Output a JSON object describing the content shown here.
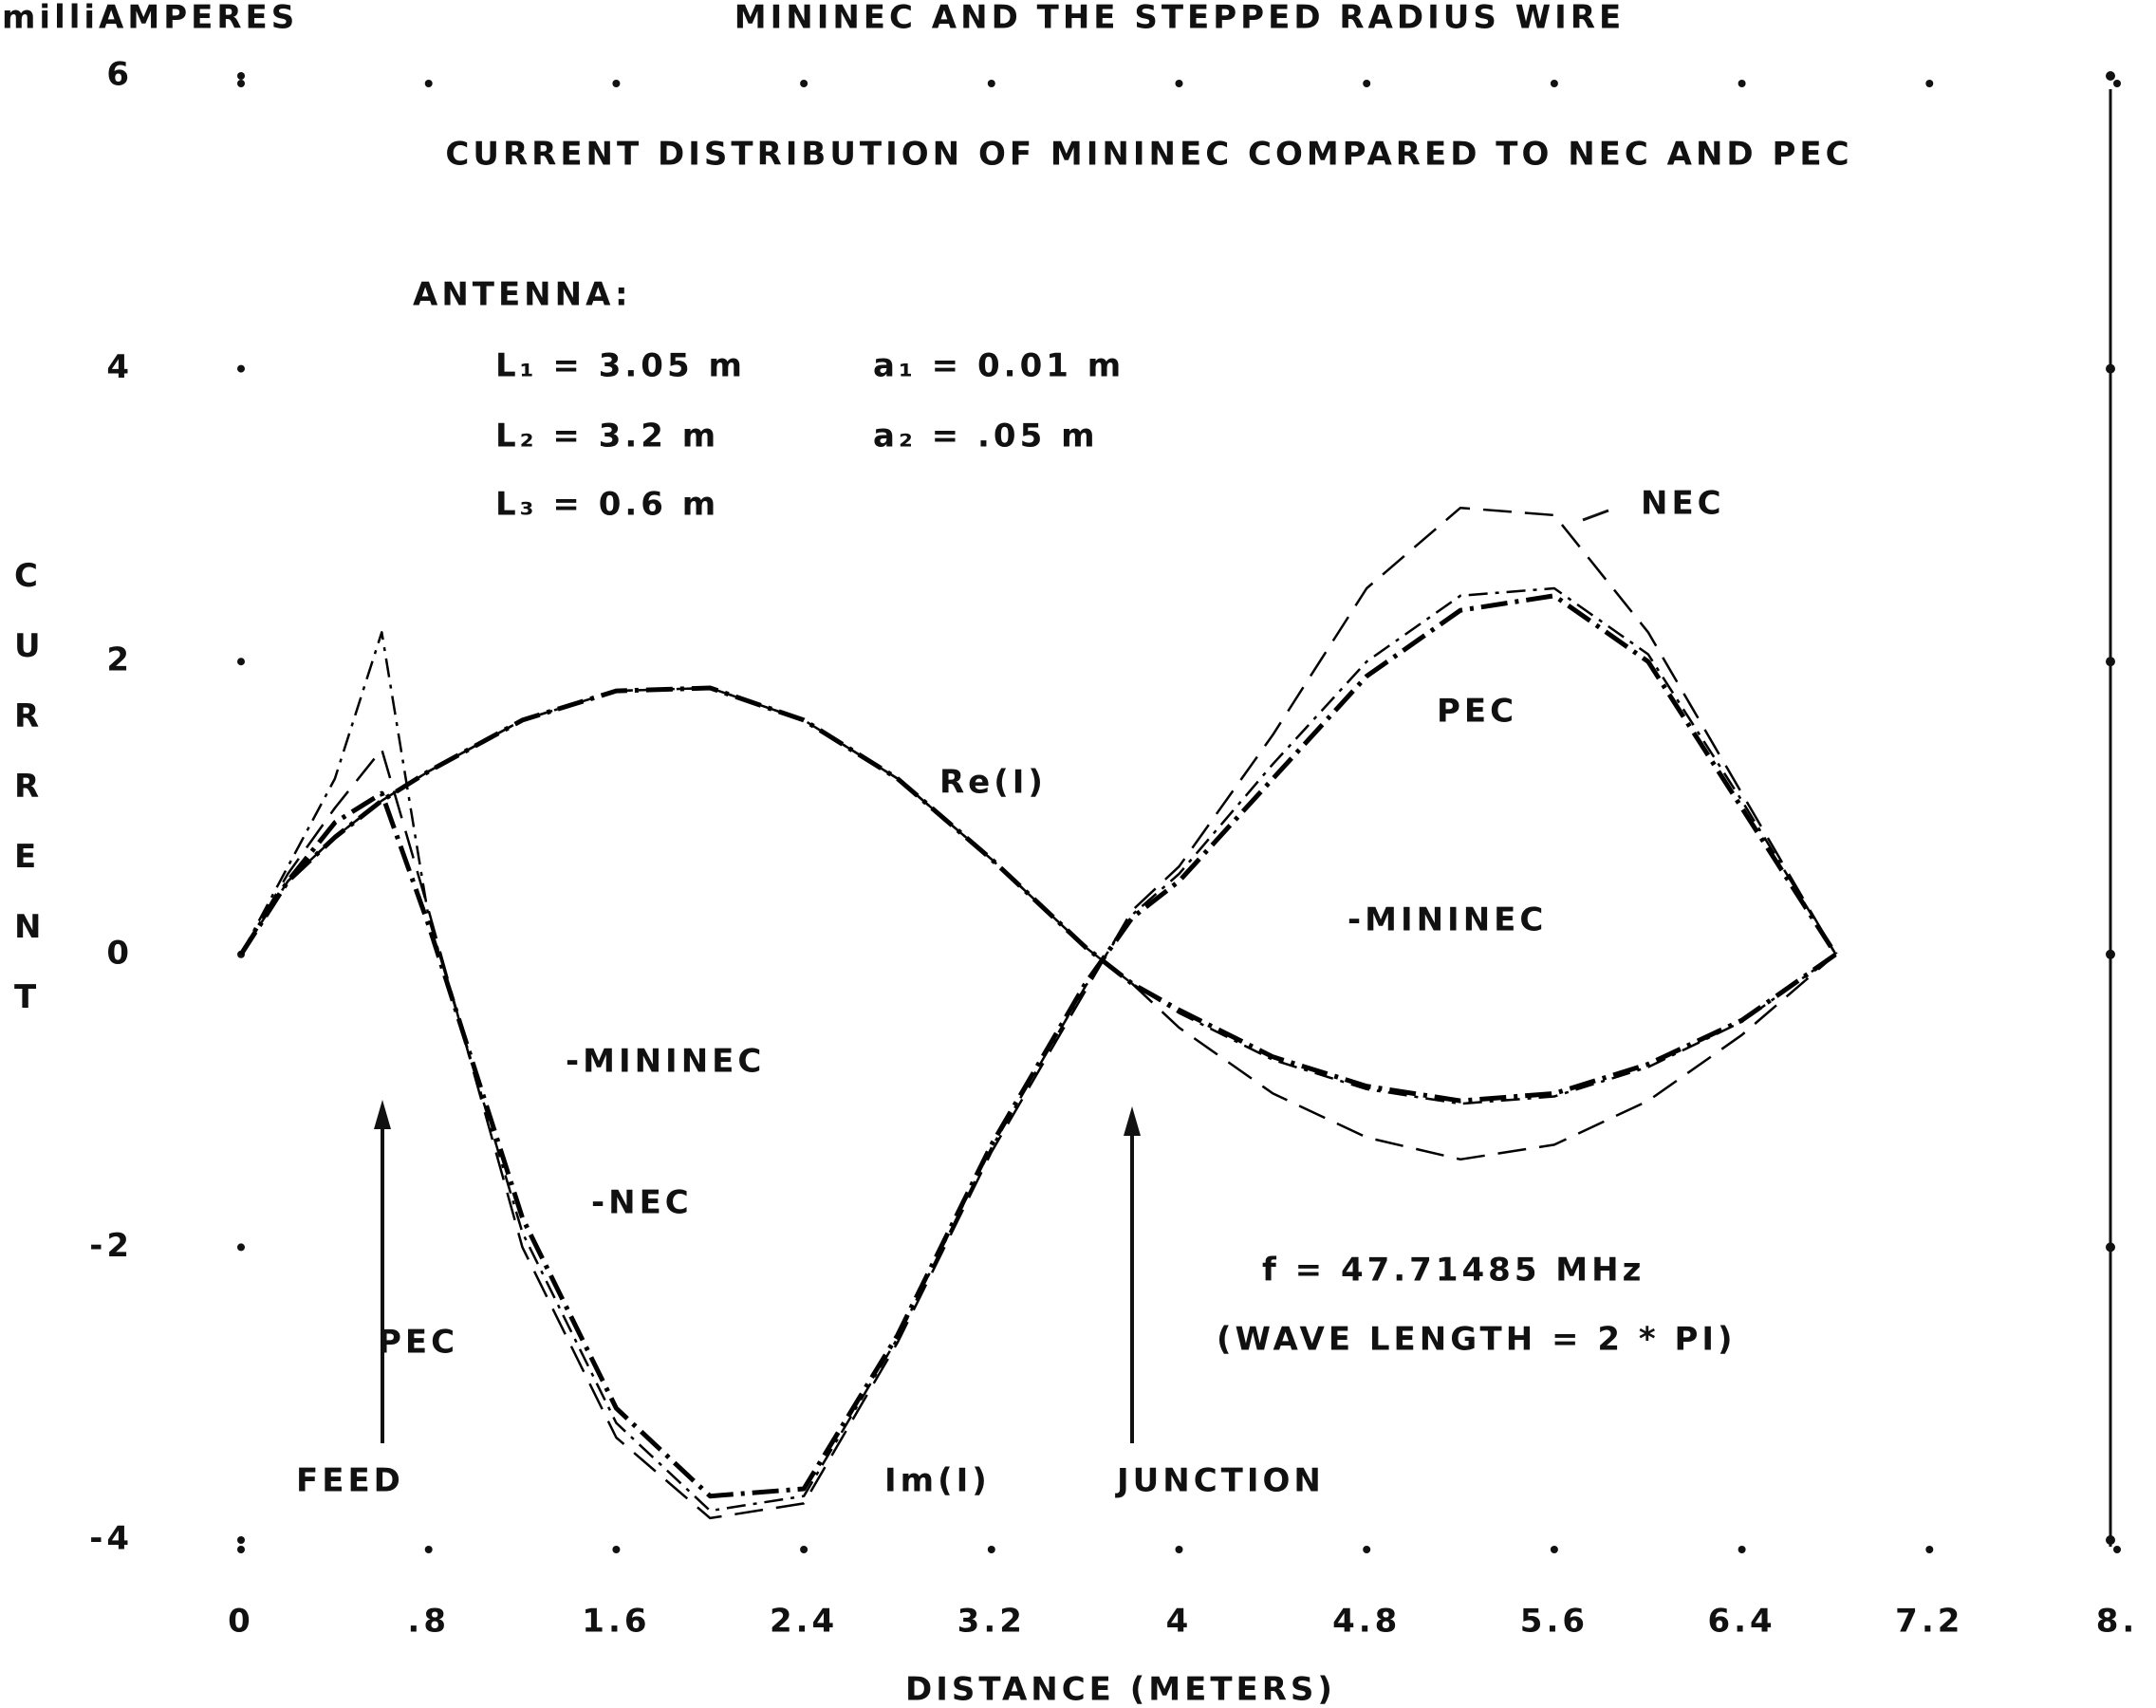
{
  "chart_data": {
    "type": "line",
    "title": "MININEC AND THE STEPPED RADIUS WIRE",
    "subtitle": "CURRENT DISTRIBUTION OF MININEC COMPARED TO NEC AND PEC",
    "y_unit_label": "milliAMPERES",
    "y_label": "CURRENT",
    "x_label": "DISTANCE (METERS)",
    "xlim": [
      0,
      8
    ],
    "ylim": [
      -4,
      6
    ],
    "xticks": [
      0,
      {
        "value": 0.8,
        "label": ".8"
      },
      1.6,
      2.4,
      3.2,
      4,
      4.8,
      5.6,
      6.4,
      7.2,
      {
        "value": 8,
        "label": "8."
      }
    ],
    "yticks": [
      -4,
      -2,
      0,
      2,
      4,
      6
    ],
    "antenna": [
      "ANTENNA:",
      "L₁ = 3.05 m",
      "a₁ = 0.01 m",
      "L₂ = 3.2 m",
      "a₂ = .05 m",
      "L₃ = 0.6 m"
    ],
    "annotations": [
      "NEC",
      "PEC",
      "Re(I)",
      "-MININEC",
      "-MININEC",
      "-NEC",
      "PEC",
      "FEED",
      "Im(I)",
      "JUNCTION",
      "f = 47.71485 MHz",
      "(WAVE LENGTH = 2 * PI)"
    ],
    "x": [
      0,
      0.2,
      0.4,
      0.6,
      0.8,
      1.2,
      1.6,
      2.0,
      2.4,
      2.8,
      3.2,
      3.6,
      3.8,
      4.0,
      4.4,
      4.8,
      5.2,
      5.6,
      6.0,
      6.4,
      6.8
    ],
    "series": [
      {
        "color": "#000000",
        "dash": "28 8 4 8",
        "width": 5,
        "values": [
          0,
          0.5,
          0.8,
          1.05,
          1.25,
          1.6,
          1.8,
          1.82,
          1.6,
          1.2,
          0.65,
          0.05,
          -0.2,
          -0.38,
          -0.7,
          -0.9,
          -1.0,
          -0.95,
          -0.75,
          -0.45,
          0
        ]
      },
      {
        "color": "#000000",
        "dash": "30 14",
        "width": 2.5,
        "values": [
          0,
          0.5,
          0.8,
          1.05,
          1.25,
          1.6,
          1.8,
          1.82,
          1.6,
          1.2,
          0.65,
          0.05,
          -0.2,
          -0.5,
          -0.95,
          -1.25,
          -1.4,
          -1.3,
          -1.0,
          -0.55,
          0
        ]
      },
      {
        "color": "#000000",
        "dash": "20 8 4 8",
        "width": 2.5,
        "values": [
          0,
          0.5,
          0.8,
          1.05,
          1.25,
          1.6,
          1.8,
          1.82,
          1.6,
          1.2,
          0.65,
          0.05,
          -0.2,
          -0.4,
          -0.72,
          -0.92,
          -1.02,
          -0.97,
          -0.77,
          -0.46,
          0
        ]
      },
      {
        "color": "#000000",
        "dash": "28 8 4 8",
        "width": 5,
        "values": [
          0,
          0.5,
          0.9,
          1.1,
          0.2,
          -1.8,
          -3.1,
          -3.7,
          -3.65,
          -2.6,
          -1.3,
          -0.2,
          0.25,
          0.5,
          1.2,
          1.9,
          2.35,
          2.45,
          2.0,
          1.0,
          0
        ]
      },
      {
        "color": "#000000",
        "dash": "30 14",
        "width": 2.5,
        "values": [
          0,
          0.55,
          1.0,
          1.4,
          0.3,
          -2.0,
          -3.3,
          -3.85,
          -3.75,
          -2.65,
          -1.35,
          -0.25,
          0.3,
          0.6,
          1.5,
          2.5,
          3.05,
          3.0,
          2.2,
          1.1,
          0
        ]
      },
      {
        "color": "#000000",
        "dash": "20 8 4 8",
        "width": 2.5,
        "values": [
          0,
          0.6,
          1.2,
          2.2,
          0.25,
          -1.9,
          -3.2,
          -3.8,
          -3.7,
          -2.62,
          -1.32,
          -0.22,
          0.27,
          0.55,
          1.3,
          2.0,
          2.45,
          2.5,
          2.05,
          1.05,
          0
        ]
      }
    ]
  }
}
